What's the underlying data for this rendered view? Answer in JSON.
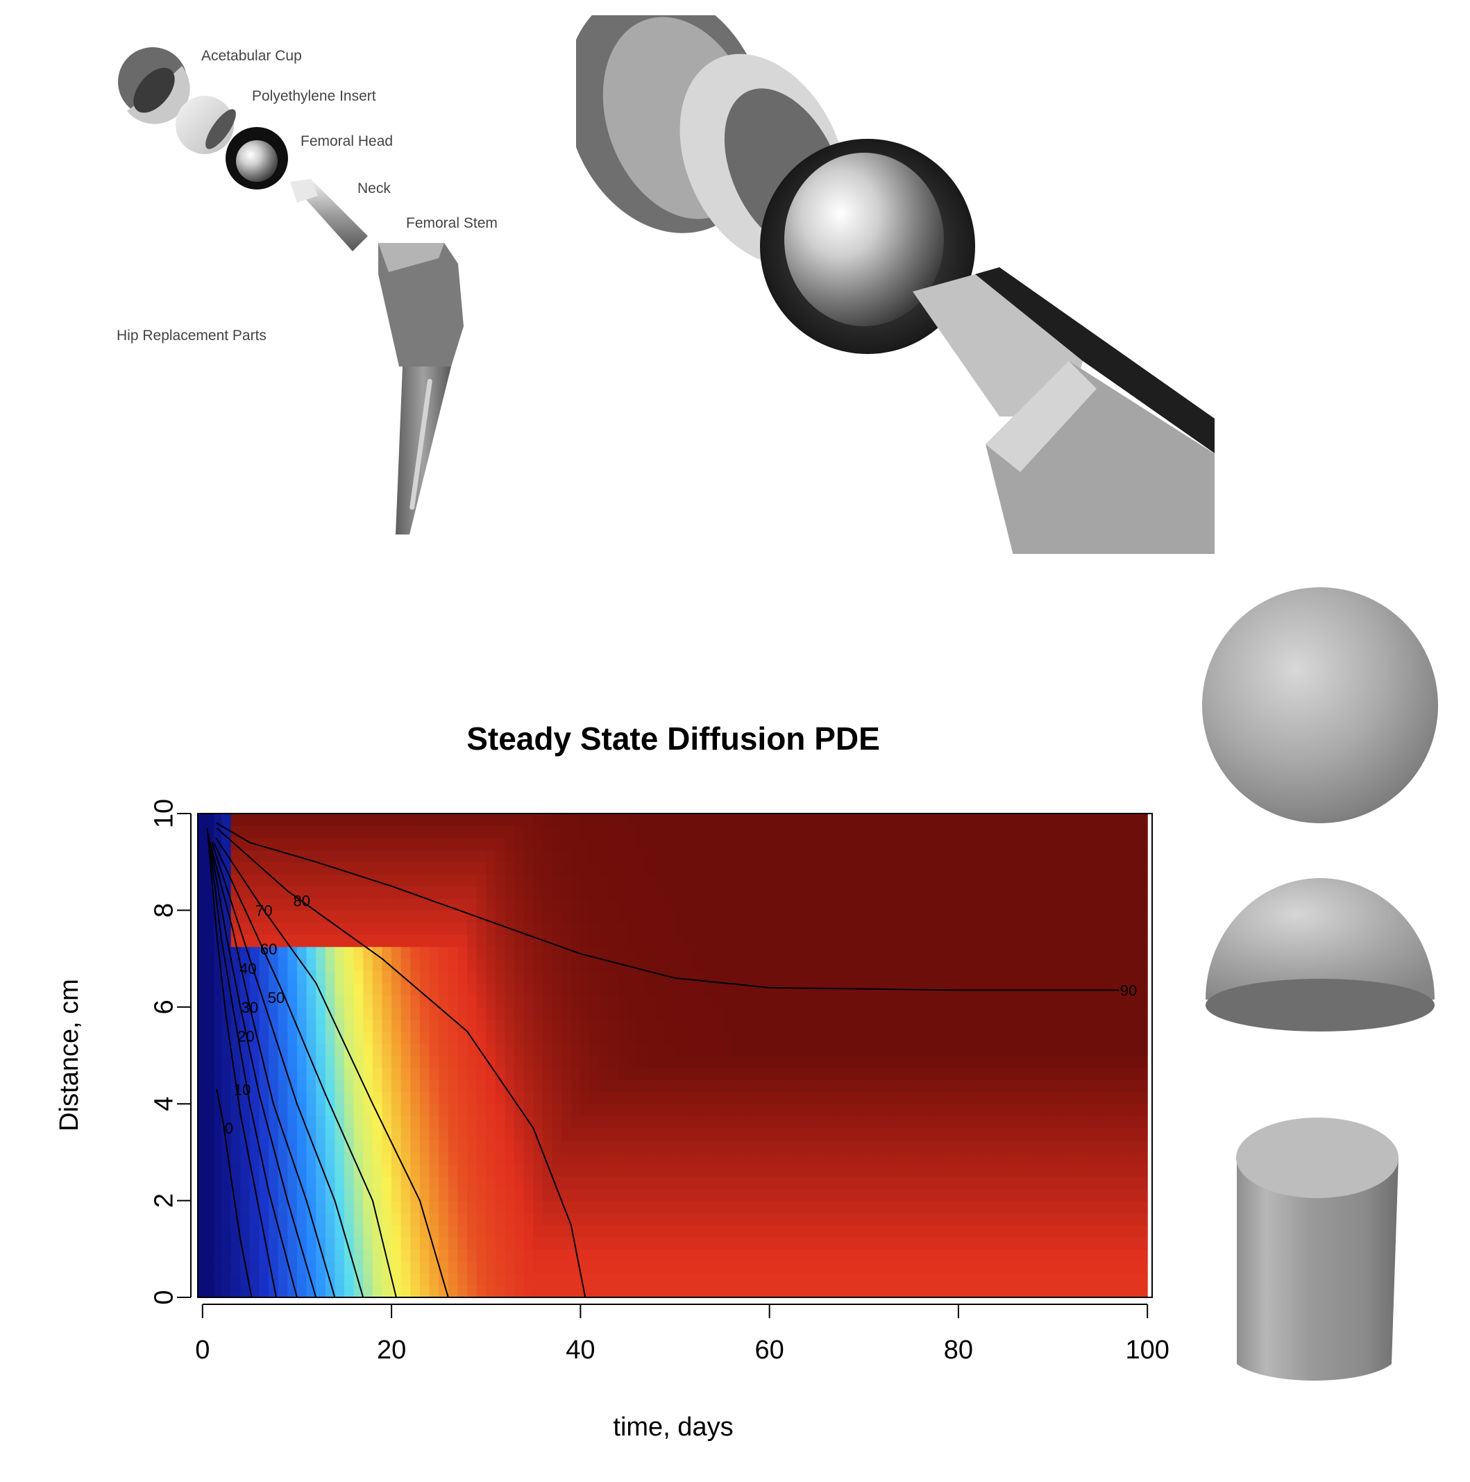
{
  "diagram": {
    "labels": [
      "Acetabular Cup",
      "Polyethylene Insert",
      "Femoral Head",
      "Neck",
      "Femoral Stem"
    ],
    "caption": "Hip Replacement Parts"
  },
  "chart_data": {
    "type": "heatmap",
    "title": "Steady State Diffusion PDE",
    "xlabel": "time, days",
    "ylabel": "Distance, cm",
    "xlim": [
      0,
      100
    ],
    "ylim": [
      0,
      10
    ],
    "xticks": [
      "0",
      "20",
      "40",
      "60",
      "80",
      "100"
    ],
    "yticks": [
      "0",
      "2",
      "4",
      "6",
      "8",
      "10"
    ],
    "contour_levels": [
      "0",
      "10",
      "20",
      "30",
      "40",
      "50",
      "60",
      "70",
      "80",
      "90"
    ],
    "contours": [
      {
        "level": "0",
        "points": [
          [
            1.5,
            4.3
          ],
          [
            2.2,
            3.6
          ],
          [
            3.0,
            2.5
          ],
          [
            4.0,
            1.2
          ],
          [
            5.2,
            0
          ]
        ]
      },
      {
        "level": "10",
        "points": [
          [
            0.5,
            9.7
          ],
          [
            1.5,
            7.5
          ],
          [
            2.5,
            5.8
          ],
          [
            4.0,
            3.8
          ],
          [
            5.8,
            2.0
          ],
          [
            7.8,
            0
          ]
        ]
      },
      {
        "level": "20",
        "points": [
          [
            0.6,
            9.6
          ],
          [
            2.0,
            7.4
          ],
          [
            3.3,
            5.9
          ],
          [
            5.0,
            4.0
          ],
          [
            7.0,
            2.2
          ],
          [
            10.0,
            0
          ]
        ]
      },
      {
        "level": "30",
        "points": [
          [
            0.7,
            9.5
          ],
          [
            2.5,
            7.5
          ],
          [
            4.0,
            6.0
          ],
          [
            6.0,
            4.2
          ],
          [
            9.0,
            2.0
          ],
          [
            12.0,
            0
          ]
        ]
      },
      {
        "level": "40",
        "points": [
          [
            0.8,
            9.4
          ],
          [
            3.2,
            7.6
          ],
          [
            5.0,
            6.0
          ],
          [
            7.5,
            4.0
          ],
          [
            11.0,
            2.0
          ],
          [
            14.0,
            0
          ]
        ]
      },
      {
        "level": "50",
        "points": [
          [
            1.0,
            9.4
          ],
          [
            4.0,
            7.6
          ],
          [
            6.5,
            6.1
          ],
          [
            10.0,
            4.0
          ],
          [
            14.0,
            2.0
          ],
          [
            17.0,
            0
          ]
        ]
      },
      {
        "level": "60",
        "points": [
          [
            1.2,
            9.4
          ],
          [
            5.0,
            7.8
          ],
          [
            8.5,
            6.3
          ],
          [
            13.0,
            4.2
          ],
          [
            18.0,
            2.0
          ],
          [
            20.5,
            0
          ]
        ]
      },
      {
        "level": "70",
        "points": [
          [
            1.4,
            9.5
          ],
          [
            6.5,
            8.0
          ],
          [
            12.0,
            6.5
          ],
          [
            18.0,
            4.0
          ],
          [
            23.0,
            2.0
          ],
          [
            26.0,
            0
          ]
        ]
      },
      {
        "level": "80",
        "points": [
          [
            1.5,
            9.7
          ],
          [
            9.0,
            8.4
          ],
          [
            19.0,
            7.0
          ],
          [
            28.0,
            5.5
          ],
          [
            35.0,
            3.5
          ],
          [
            39.0,
            1.5
          ],
          [
            40.5,
            0
          ]
        ]
      },
      {
        "level": "90",
        "points": [
          [
            1.5,
            9.8
          ],
          [
            5.0,
            9.4
          ],
          [
            12.0,
            9.0
          ],
          [
            20.0,
            8.5
          ],
          [
            30.0,
            7.8
          ],
          [
            40.0,
            7.1
          ],
          [
            50.0,
            6.6
          ],
          [
            60.0,
            6.4
          ],
          [
            80.0,
            6.35
          ],
          [
            97.0,
            6.35
          ]
        ]
      }
    ]
  }
}
